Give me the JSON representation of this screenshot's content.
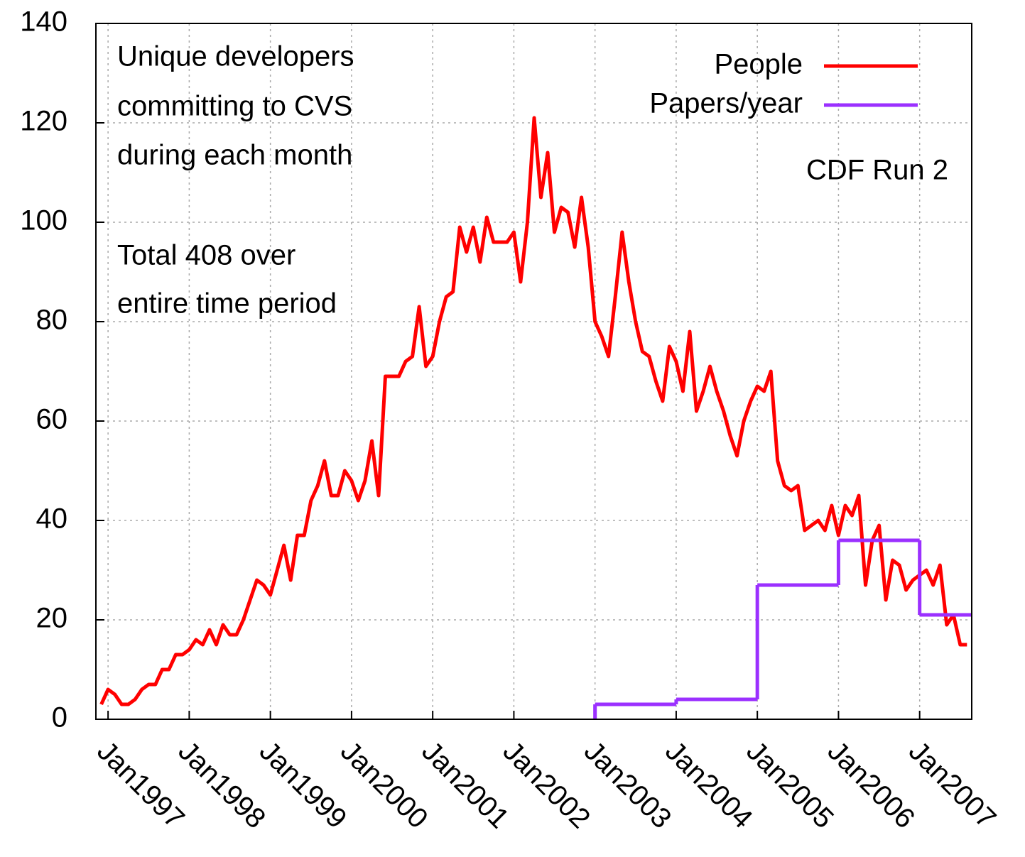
{
  "chart_data": {
    "type": "line",
    "annotations": [
      "Unique developers",
      "committing to CVS",
      "during each month",
      "Total 408 over",
      "entire time period",
      "CDF Run 2"
    ],
    "xlim": [
      "1996-12",
      "2007-08"
    ],
    "xticks": [
      {
        "value": "1997-01",
        "label": "Jan1997"
      },
      {
        "value": "1998-01",
        "label": "Jan1998"
      },
      {
        "value": "1999-01",
        "label": "Jan1999"
      },
      {
        "value": "2000-01",
        "label": "Jan2000"
      },
      {
        "value": "2001-01",
        "label": "Jan2001"
      },
      {
        "value": "2002-01",
        "label": "Jan2002"
      },
      {
        "value": "2003-01",
        "label": "Jan2003"
      },
      {
        "value": "2004-01",
        "label": "Jan2004"
      },
      {
        "value": "2005-01",
        "label": "Jan2005"
      },
      {
        "value": "2006-01",
        "label": "Jan2006"
      },
      {
        "value": "2007-01",
        "label": "Jan2007"
      }
    ],
    "ylim": [
      0,
      140
    ],
    "yticks": [
      0,
      20,
      40,
      60,
      80,
      100,
      120,
      140
    ],
    "grid": true,
    "legend": "top-right",
    "series": [
      {
        "name": "People",
        "color": "#ff0000",
        "x": [
          "1996-12",
          "1997-01",
          "1997-02",
          "1997-03",
          "1997-04",
          "1997-05",
          "1997-06",
          "1997-07",
          "1997-08",
          "1997-09",
          "1997-10",
          "1997-11",
          "1997-12",
          "1998-01",
          "1998-02",
          "1998-03",
          "1998-04",
          "1998-05",
          "1998-06",
          "1998-07",
          "1998-08",
          "1998-09",
          "1998-10",
          "1998-11",
          "1998-12",
          "1999-01",
          "1999-02",
          "1999-03",
          "1999-04",
          "1999-05",
          "1999-06",
          "1999-07",
          "1999-08",
          "1999-09",
          "1999-10",
          "1999-11",
          "1999-12",
          "2000-01",
          "2000-02",
          "2000-03",
          "2000-04",
          "2000-05",
          "2000-06",
          "2000-07",
          "2000-08",
          "2000-09",
          "2000-10",
          "2000-11",
          "2000-12",
          "2001-01",
          "2001-02",
          "2001-03",
          "2001-04",
          "2001-05",
          "2001-06",
          "2001-07",
          "2001-08",
          "2001-09",
          "2001-10",
          "2001-11",
          "2001-12",
          "2002-01",
          "2002-02",
          "2002-03",
          "2002-04",
          "2002-05",
          "2002-06",
          "2002-07",
          "2002-08",
          "2002-09",
          "2002-10",
          "2002-11",
          "2002-12",
          "2003-01",
          "2003-02",
          "2003-03",
          "2003-04",
          "2003-05",
          "2003-06",
          "2003-07",
          "2003-08",
          "2003-09",
          "2003-10",
          "2003-11",
          "2003-12",
          "2004-01",
          "2004-02",
          "2004-03",
          "2004-04",
          "2004-05",
          "2004-06",
          "2004-07",
          "2004-08",
          "2004-09",
          "2004-10",
          "2004-11",
          "2004-12",
          "2005-01",
          "2005-02",
          "2005-03",
          "2005-04",
          "2005-05",
          "2005-06",
          "2005-07",
          "2005-08",
          "2005-09",
          "2005-10",
          "2005-11",
          "2005-12",
          "2006-01",
          "2006-02",
          "2006-03",
          "2006-04",
          "2006-05",
          "2006-06",
          "2006-07",
          "2006-08",
          "2006-09",
          "2006-10",
          "2006-11",
          "2006-12",
          "2007-01",
          "2007-02",
          "2007-03",
          "2007-04",
          "2007-05",
          "2007-06",
          "2007-07",
          "2007-08"
        ],
        "values": [
          3,
          6,
          5,
          3,
          3,
          4,
          6,
          7,
          7,
          10,
          10,
          13,
          13,
          14,
          16,
          15,
          18,
          15,
          19,
          17,
          17,
          20,
          24,
          28,
          27,
          25,
          30,
          35,
          28,
          37,
          37,
          44,
          47,
          52,
          45,
          45,
          50,
          48,
          44,
          48,
          56,
          45,
          69,
          69,
          69,
          72,
          73,
          83,
          71,
          73,
          80,
          85,
          86,
          99,
          94,
          99,
          92,
          101,
          96,
          96,
          96,
          98,
          88,
          100,
          121,
          105,
          114,
          98,
          103,
          102,
          95,
          105,
          95,
          80,
          77,
          73,
          85,
          98,
          88,
          80,
          74,
          73,
          68,
          64,
          75,
          72,
          66,
          78,
          62,
          66,
          71,
          66,
          62,
          57,
          53,
          60,
          64,
          67,
          66,
          70,
          52,
          47,
          46,
          47,
          38,
          39,
          40,
          38,
          43,
          37,
          43,
          41,
          45,
          27,
          36,
          39,
          24,
          32,
          31,
          26,
          28,
          29,
          30,
          27,
          31,
          19,
          21,
          15,
          15
        ]
      },
      {
        "name": "Papers/year",
        "color": "#9b30ff",
        "step": "post",
        "x": [
          "2003-01",
          "2004-01",
          "2005-01",
          "2006-01",
          "2007-01"
        ],
        "values": [
          3,
          4,
          27,
          36,
          21
        ]
      }
    ]
  }
}
